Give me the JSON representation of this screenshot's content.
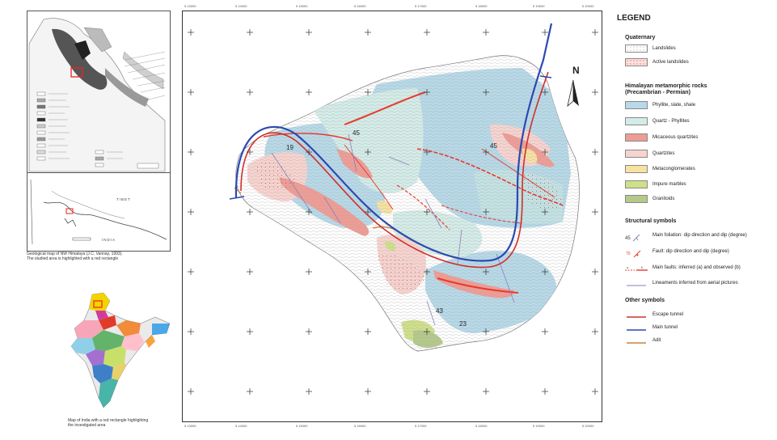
{
  "left_inset_caption": "Geological map of NW Himalaya (J.C. Vannay, 1993).\nThe studied area is highlighted with a red rectangle",
  "india_inset_caption": "Map of India with a red rectangle highlighting\nthe investigated area",
  "inset_top_labels": [
    "INDIA",
    "TIBET"
  ],
  "north_label": "N",
  "grid_ticks_top": [
    "5 13000",
    "5 14000",
    "5 15000",
    "5 16000",
    "5 17000",
    "5 18000",
    "5 19000",
    "5 20000"
  ],
  "grid_ticks_bottom": [
    "5 13000",
    "5 14000",
    "5 15000",
    "5 16000",
    "5 17000",
    "5 18000",
    "5 19000",
    "5 20000"
  ],
  "dip_labels": [
    {
      "text": "45"
    },
    {
      "text": "19"
    },
    {
      "text": "45"
    },
    {
      "text": "43"
    },
    {
      "text": "23"
    }
  ],
  "legend": {
    "title": "LEGEND",
    "sections": [
      {
        "heading": "Quaternary",
        "items": [
          {
            "label": "Landslides",
            "type": "swatch",
            "color": "#ffffff",
            "pattern": "dots"
          },
          {
            "label": "Active landslides",
            "type": "swatch",
            "color": "#fde0dc",
            "pattern": "reddots"
          }
        ]
      },
      {
        "heading": "Himalayan metamorphic rocks\n(Precambrian - Permian)",
        "items": [
          {
            "label": "Phyllite, slate, shale",
            "type": "swatch",
            "color": "#b7d9e8"
          },
          {
            "label": "Quartz - Phyllites",
            "type": "swatch",
            "color": "#d4ece8"
          },
          {
            "label": "Micaceous quartzites",
            "type": "swatch",
            "color": "#ef9c94"
          },
          {
            "label": "Quartzites",
            "type": "swatch",
            "color": "#f7d3cf"
          },
          {
            "label": "Metaconglomerates",
            "type": "swatch",
            "color": "#f7e2a1"
          },
          {
            "label": "Impure marbles",
            "type": "swatch",
            "color": "#cfe08a"
          },
          {
            "label": "Granitoids",
            "type": "swatch",
            "color": "#b5c98a"
          }
        ]
      },
      {
        "heading": "Structural symbols",
        "items": [
          {
            "label": "Main foliation: dip direction and dip (degree)",
            "type": "foliation"
          },
          {
            "label": "Fault: dip direction and dip (degree)",
            "type": "fault-dip"
          },
          {
            "label": "Main faults: inferred (a) and observed (b)",
            "type": "main-fault"
          },
          {
            "label": "Lineaments inferred from aerial pictures",
            "type": "lineament"
          }
        ]
      },
      {
        "heading": "Other symbols",
        "items": [
          {
            "label": "Escape tunnel",
            "type": "line",
            "color": "#d0302a"
          },
          {
            "label": "Main tunnel",
            "type": "line",
            "color": "#2b49b0"
          },
          {
            "label": "Adit",
            "type": "line",
            "color": "#c9823a"
          }
        ]
      }
    ]
  },
  "colors": {
    "main_tunnel": "#2b49b0",
    "escape_tunnel": "#d0302a",
    "adit": "#c9823a",
    "fault": "#e8392c",
    "lineament": "#8a7fb8",
    "contour": "#9a9a9a",
    "phyllite": "#b7d9e8",
    "quartz_phyllite": "#d4ece8",
    "mica_quartzite": "#ef9c94",
    "quartzite": "#f7d3cf",
    "metaconglomerate": "#f7e2a1",
    "marble": "#cfe08a",
    "granitoid": "#b5c98a"
  }
}
